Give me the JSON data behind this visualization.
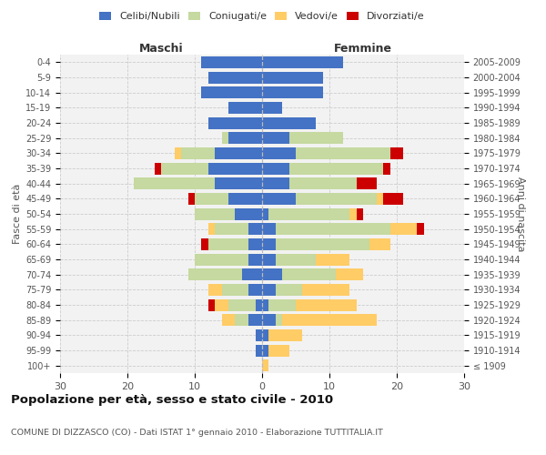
{
  "age_groups": [
    "100+",
    "95-99",
    "90-94",
    "85-89",
    "80-84",
    "75-79",
    "70-74",
    "65-69",
    "60-64",
    "55-59",
    "50-54",
    "45-49",
    "40-44",
    "35-39",
    "30-34",
    "25-29",
    "20-24",
    "15-19",
    "10-14",
    "5-9",
    "0-4"
  ],
  "birth_years": [
    "≤ 1909",
    "1910-1914",
    "1915-1919",
    "1920-1924",
    "1925-1929",
    "1930-1934",
    "1935-1939",
    "1940-1944",
    "1945-1949",
    "1950-1954",
    "1955-1959",
    "1960-1964",
    "1965-1969",
    "1970-1974",
    "1975-1979",
    "1980-1984",
    "1985-1989",
    "1990-1994",
    "1995-1999",
    "2000-2004",
    "2005-2009"
  ],
  "colors": {
    "celibi": "#4472C4",
    "coniugati": "#C5D9A0",
    "vedovi": "#FFCC66",
    "divorziati": "#CC0000",
    "background": "#F2F2F2",
    "grid": "#CCCCCC"
  },
  "maschi": {
    "celibi": [
      0,
      1,
      1,
      2,
      1,
      2,
      3,
      2,
      2,
      2,
      4,
      5,
      7,
      8,
      7,
      5,
      8,
      5,
      9,
      8,
      9
    ],
    "coniugati": [
      0,
      0,
      0,
      2,
      4,
      4,
      8,
      8,
      6,
      5,
      6,
      5,
      12,
      7,
      5,
      1,
      0,
      0,
      0,
      0,
      0
    ],
    "vedovi": [
      0,
      0,
      0,
      2,
      2,
      2,
      0,
      0,
      0,
      1,
      0,
      0,
      0,
      0,
      1,
      0,
      0,
      0,
      0,
      0,
      0
    ],
    "divorziati": [
      0,
      0,
      0,
      0,
      1,
      0,
      0,
      0,
      1,
      0,
      0,
      1,
      0,
      1,
      0,
      0,
      0,
      0,
      0,
      0,
      0
    ]
  },
  "femmine": {
    "celibi": [
      0,
      1,
      1,
      2,
      1,
      2,
      3,
      2,
      2,
      2,
      1,
      5,
      4,
      4,
      5,
      4,
      8,
      3,
      9,
      9,
      12
    ],
    "coniugati": [
      0,
      0,
      0,
      1,
      4,
      4,
      8,
      6,
      14,
      17,
      12,
      12,
      10,
      14,
      14,
      8,
      0,
      0,
      0,
      0,
      0
    ],
    "vedovi": [
      1,
      3,
      5,
      14,
      9,
      7,
      4,
      5,
      3,
      4,
      1,
      1,
      0,
      0,
      0,
      0,
      0,
      0,
      0,
      0,
      0
    ],
    "divorziati": [
      0,
      0,
      0,
      0,
      0,
      0,
      0,
      0,
      0,
      1,
      1,
      3,
      3,
      1,
      2,
      0,
      0,
      0,
      0,
      0,
      0
    ]
  },
  "xlim": 30,
  "title": "Popolazione per età, sesso e stato civile - 2010",
  "subtitle": "COMUNE DI DIZZASCO (CO) - Dati ISTAT 1° gennaio 2010 - Elaborazione TUTTITALIA.IT",
  "ylabel_left": "Fasce di età",
  "ylabel_right": "Anni di nascita",
  "header_left": "Maschi",
  "header_right": "Femmine",
  "legend": [
    "Celibi/Nubili",
    "Coniugati/e",
    "Vedovi/e",
    "Divorziati/e"
  ]
}
